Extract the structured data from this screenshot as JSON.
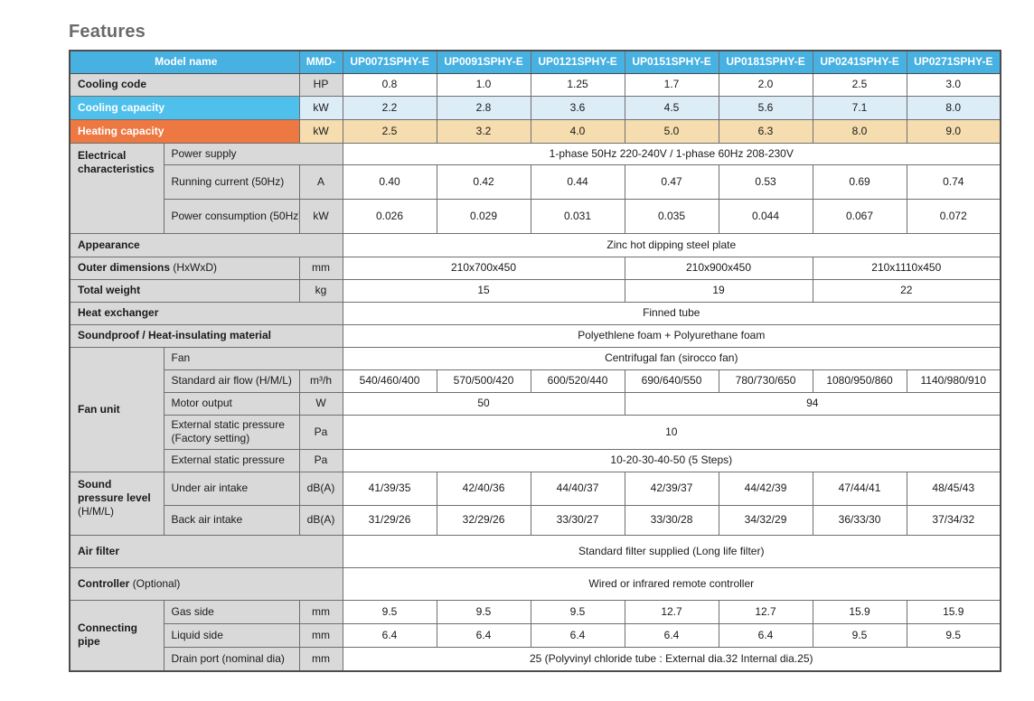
{
  "page": {
    "title": "Features"
  },
  "colors": {
    "header_blue": "#47b1e2",
    "label_gray": "#d9d9d9",
    "cool_blue": "#4fc0ec",
    "heat_orange": "#ee7841",
    "cool_tint": "#dcedf8",
    "heat_tint": "#f6ddb0"
  },
  "table": {
    "header": {
      "model_label": "Model name",
      "series_prefix": "MMD-",
      "models": [
        "UP0071SPHY-E",
        "UP0091SPHY-E",
        "UP0121SPHY-E",
        "UP0151SPHY-E",
        "UP0181SPHY-E",
        "UP0241SPHY-E",
        "UP0271SPHY-E"
      ]
    },
    "cooling_code": {
      "label": "Cooling code",
      "unit": "HP",
      "values": [
        "0.8",
        "1.0",
        "1.25",
        "1.7",
        "2.0",
        "2.5",
        "3.0"
      ]
    },
    "cooling_capacity": {
      "label": "Cooling capacity",
      "unit": "kW",
      "values": [
        "2.2",
        "2.8",
        "3.6",
        "4.5",
        "5.6",
        "7.1",
        "8.0"
      ]
    },
    "heating_capacity": {
      "label": "Heating capacity",
      "unit": "kW",
      "values": [
        "2.5",
        "3.2",
        "4.0",
        "5.0",
        "6.3",
        "8.0",
        "9.0"
      ]
    },
    "electrical": {
      "group_label": "Electrical characteristics",
      "power_supply": {
        "label": "Power supply",
        "value": "1-phase 50Hz 220-240V / 1-phase 60Hz 208-230V"
      },
      "running_current": {
        "label": "Running current  (50Hz)",
        "unit": "A",
        "values": [
          "0.40",
          "0.42",
          "0.44",
          "0.47",
          "0.53",
          "0.69",
          "0.74"
        ]
      },
      "power_consumption": {
        "label": "Power consumption  (50Hz)",
        "unit": "kW",
        "values": [
          "0.026",
          "0.029",
          "0.031",
          "0.035",
          "0.044",
          "0.067",
          "0.072"
        ]
      }
    },
    "appearance": {
      "label": "Appearance",
      "value": "Zinc hot dipping steel plate"
    },
    "outer_dimensions": {
      "label": "Outer dimensions",
      "note": "(HxWxD)",
      "unit": "mm",
      "values": [
        {
          "text": "210x700x450",
          "span": 3
        },
        {
          "text": "210x900x450",
          "span": 2
        },
        {
          "text": "210x1110x450",
          "span": 2
        }
      ]
    },
    "total_weight": {
      "label": "Total weight",
      "unit": "kg",
      "values": [
        {
          "text": "15",
          "span": 3
        },
        {
          "text": "19",
          "span": 2
        },
        {
          "text": "22",
          "span": 2
        }
      ]
    },
    "heat_exchanger": {
      "label": "Heat exchanger",
      "value": "Finned tube"
    },
    "soundproof": {
      "label": "Soundproof / Heat-insulating material",
      "value": "Polyethlene foam + Polyurethane foam"
    },
    "fan_unit": {
      "group_label": "Fan unit",
      "fan": {
        "label": "Fan",
        "value": "Centrifugal fan (sirocco fan)"
      },
      "air_flow": {
        "label": "Standard air flow (H/M/L)",
        "unit": "m³/h",
        "values": [
          "540/460/400",
          "570/500/420",
          "600/520/440",
          "690/640/550",
          "780/730/650",
          "1080/950/860",
          "1140/980/910"
        ]
      },
      "motor_output": {
        "label": "Motor output",
        "unit": "W",
        "values": [
          {
            "text": "50",
            "span": 3
          },
          {
            "text": "94",
            "span": 4
          }
        ]
      },
      "esp_factory": {
        "label": "External static pressure (Factory setting)",
        "unit": "Pa",
        "value": "10"
      },
      "esp": {
        "label": "External static pressure",
        "unit": "Pa",
        "value": "10-20-30-40-50 (5 Steps)"
      }
    },
    "sound": {
      "group_label": "Sound pressure level",
      "group_note": "(H/M/L)",
      "under": {
        "label": "Under air intake",
        "unit": "dB(A)",
        "values": [
          "41/39/35",
          "42/40/36",
          "44/40/37",
          "42/39/37",
          "44/42/39",
          "47/44/41",
          "48/45/43"
        ]
      },
      "back": {
        "label": "Back air intake",
        "unit": "dB(A)",
        "values": [
          "31/29/26",
          "32/29/26",
          "33/30/27",
          "33/30/28",
          "34/32/29",
          "36/33/30",
          "37/34/32"
        ]
      }
    },
    "air_filter": {
      "label": "Air filter",
      "value": "Standard filter supplied (Long life filter)"
    },
    "controller": {
      "label": "Controller",
      "note": "(Optional)",
      "value": "Wired or infrared remote controller"
    },
    "connecting_pipe": {
      "group_label": "Connecting pipe",
      "gas": {
        "label": "Gas side",
        "unit": "mm",
        "values": [
          "9.5",
          "9.5",
          "9.5",
          "12.7",
          "12.7",
          "15.9",
          "15.9"
        ]
      },
      "liquid": {
        "label": "Liquid side",
        "unit": "mm",
        "values": [
          "6.4",
          "6.4",
          "6.4",
          "6.4",
          "6.4",
          "9.5",
          "9.5"
        ]
      },
      "drain": {
        "label": "Drain port (nominal dia)",
        "unit": "mm",
        "value": "25 (Polyvinyl chloride tube : External dia.32 Internal dia.25)"
      }
    }
  }
}
